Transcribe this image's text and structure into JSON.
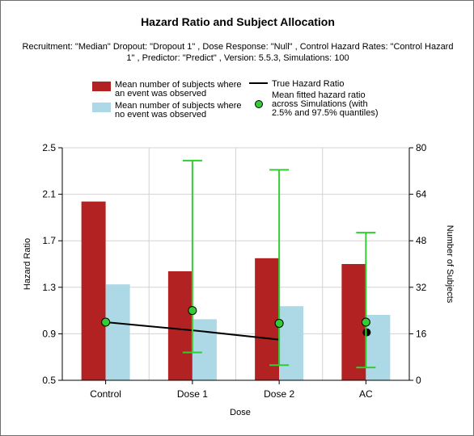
{
  "chart_data": {
    "type": "bar",
    "title": "Hazard Ratio and Subject Allocation",
    "subtitle_lines": [
      "Recruitment: \"Median\" Dropout: \"Dropout 1\" , Dose Response: \"Null\" , Control Hazard Rates: \"Control Hazard",
      "1\" , Predictor: \"Predict\" , Version: 5.5.3, Simulations: 100"
    ],
    "xlabel": "Dose",
    "ylabel_left": "Hazard Ratio",
    "ylabel_right": "Number of Subjects",
    "categories": [
      "Control",
      "Dose 1",
      "Dose 2",
      "AC"
    ],
    "ylim_left": [
      0.5,
      2.5
    ],
    "yticks_left": [
      "0.5",
      "0.9",
      "1.3",
      "1.7",
      "2.1",
      "2.5"
    ],
    "ylim_right": [
      0,
      80
    ],
    "yticks_right": [
      "0",
      "16",
      "32",
      "48",
      "64",
      "80"
    ],
    "grid": true,
    "legend_position": "top",
    "series": [
      {
        "name": "Mean number of subjects where an event was observed",
        "label_lines": [
          "Mean number of subjects where",
          "an event was observed"
        ],
        "kind": "bar",
        "axis": "right",
        "color": "#b22222",
        "values": [
          61.5,
          37.5,
          42,
          40
        ]
      },
      {
        "name": "Mean number of subjects where no event was observed",
        "label_lines": [
          "Mean number of subjects where",
          "no event was observed"
        ],
        "kind": "bar",
        "axis": "right",
        "color": "#add8e6",
        "values": [
          33,
          21,
          25.5,
          22.5
        ]
      },
      {
        "name": "True Hazard Ratio",
        "label_lines": [
          "True Hazard Ratio"
        ],
        "kind": "line",
        "axis": "left",
        "color": "#000000",
        "values": [
          1.0,
          0.93,
          0.85,
          0.94
        ]
      },
      {
        "name": "Mean fitted hazard ratio across Simulations (with 2.5% and 97.5% quantiles)",
        "label_lines": [
          "Mean fitted hazard ratio",
          "across Simulations (with",
          "2.5% and 97.5% quantiles)"
        ],
        "kind": "point_errorbar",
        "axis": "left",
        "color": "#32cd32",
        "values": [
          1.0,
          1.1,
          0.99,
          1.0
        ],
        "lower": [
          null,
          0.74,
          0.63,
          0.61
        ],
        "upper": [
          null,
          2.39,
          2.31,
          1.77
        ]
      }
    ]
  }
}
